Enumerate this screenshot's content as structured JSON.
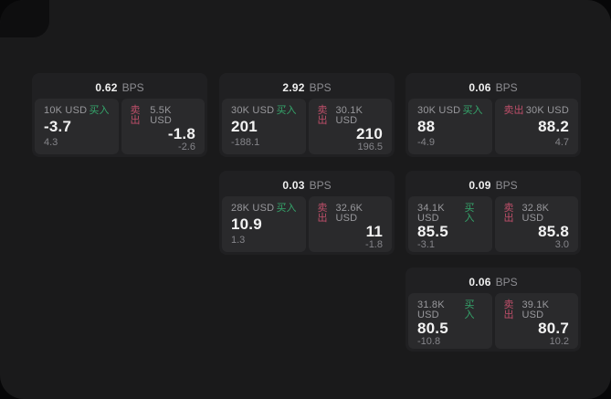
{
  "labels": {
    "bps_unit": "BPS",
    "buy": "买入",
    "sell": "卖出"
  },
  "colors": {
    "buy": "#35a56b",
    "sell": "#bf4f6a",
    "background": "#1a1a1b",
    "card": "#202022",
    "pane": "#2a2a2c"
  },
  "cards": [
    {
      "bps": "0.62",
      "buy": {
        "size": "10K USD",
        "price": "-3.7",
        "delta": "4.3"
      },
      "sell": {
        "size": "5.5K USD",
        "price": "-1.8",
        "delta": "-2.6"
      }
    },
    {
      "bps": "2.92",
      "buy": {
        "size": "30K USD",
        "price": "201",
        "delta": "-188.1"
      },
      "sell": {
        "size": "30.1K USD",
        "price": "210",
        "delta": "196.5"
      }
    },
    {
      "bps": "0.06",
      "buy": {
        "size": "30K USD",
        "price": "88",
        "delta": "-4.9"
      },
      "sell": {
        "size": "30K USD",
        "price": "88.2",
        "delta": "4.7"
      }
    },
    {
      "bps": "0.03",
      "buy": {
        "size": "28K USD",
        "price": "10.9",
        "delta": "1.3"
      },
      "sell": {
        "size": "32.6K USD",
        "price": "11",
        "delta": "-1.8"
      }
    },
    {
      "bps": "0.09",
      "buy": {
        "size": "34.1K USD",
        "price": "85.5",
        "delta": "-3.1"
      },
      "sell": {
        "size": "32.8K USD",
        "price": "85.8",
        "delta": "3.0"
      }
    },
    {
      "bps": "0.06",
      "buy": {
        "size": "31.8K USD",
        "price": "80.5",
        "delta": "-10.8"
      },
      "sell": {
        "size": "39.1K USD",
        "price": "80.7",
        "delta": "10.2"
      }
    }
  ]
}
